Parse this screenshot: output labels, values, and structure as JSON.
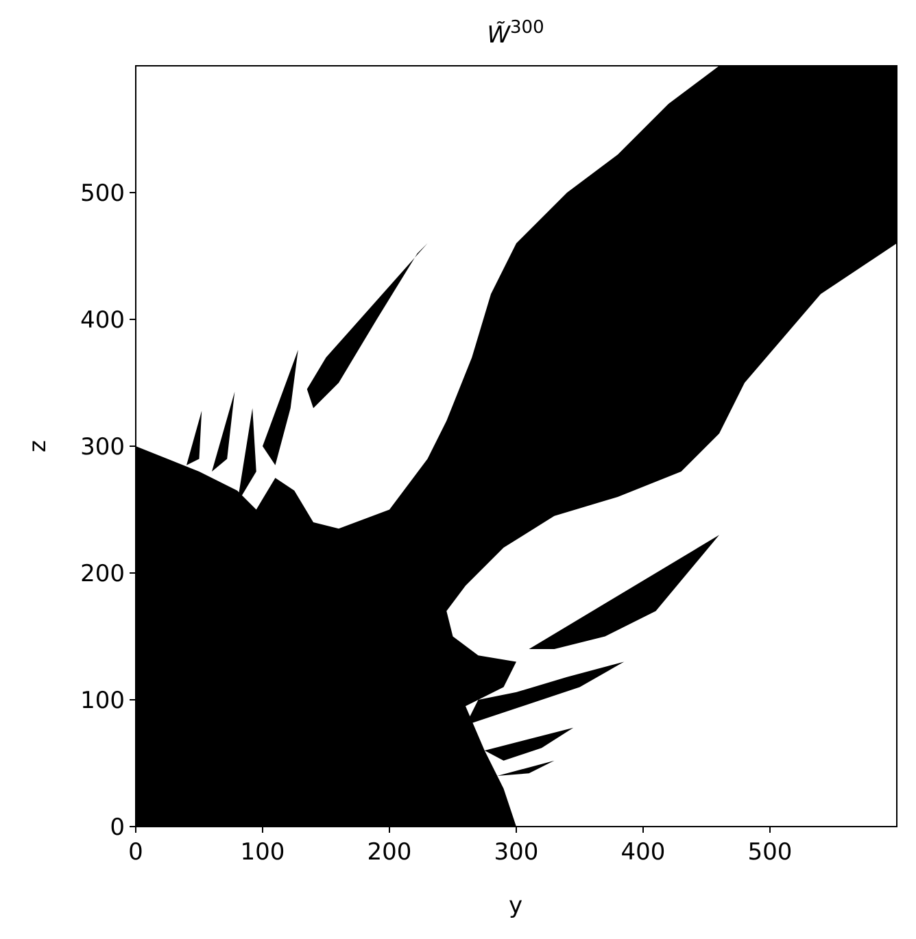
{
  "chart_data": {
    "type": "image",
    "title": "W̃",
    "title_superscript": "300",
    "x_label": "y",
    "y_label": "z",
    "xlim": [
      0,
      600
    ],
    "ylim": [
      0,
      600
    ],
    "xticks": [
      0,
      100,
      200,
      300,
      400,
      500
    ],
    "yticks": [
      0,
      100,
      200,
      300,
      400,
      500
    ],
    "colormap": [
      "#ffffff",
      "#000000"
    ]
  }
}
